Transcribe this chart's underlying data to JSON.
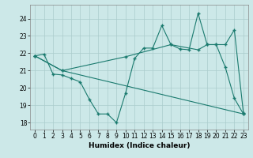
{
  "title": "",
  "xlabel": "Humidex (Indice chaleur)",
  "bg_color": "#cce8e8",
  "grid_color": "#aacccc",
  "line_color": "#1a7a6e",
  "yticks": [
    18,
    19,
    20,
    21,
    22,
    23,
    24
  ],
  "xticks": [
    0,
    1,
    2,
    3,
    4,
    5,
    6,
    7,
    8,
    9,
    10,
    11,
    12,
    13,
    14,
    15,
    16,
    17,
    18,
    19,
    20,
    21,
    22,
    23
  ],
  "xlim": [
    -0.5,
    23.5
  ],
  "ylim": [
    17.6,
    24.8
  ],
  "series1_x": [
    0,
    1,
    2,
    3,
    4,
    5,
    6,
    7,
    8,
    9,
    10,
    11,
    12,
    13,
    14,
    15,
    16,
    17,
    18,
    19,
    20,
    21,
    22,
    23
  ],
  "series1_y": [
    21.85,
    21.95,
    20.8,
    20.75,
    20.55,
    20.35,
    19.35,
    18.5,
    18.5,
    18.0,
    19.7,
    21.7,
    22.3,
    22.3,
    23.6,
    22.5,
    22.25,
    22.2,
    24.3,
    22.5,
    22.5,
    21.2,
    19.4,
    18.5
  ],
  "series2_x": [
    0,
    3,
    23
  ],
  "series2_y": [
    21.85,
    21.0,
    18.5
  ],
  "series3_x": [
    0,
    3,
    10,
    15,
    18,
    19,
    20,
    21,
    22,
    23
  ],
  "series3_y": [
    21.85,
    21.0,
    21.8,
    22.5,
    22.2,
    22.5,
    22.5,
    22.5,
    23.35,
    18.55
  ]
}
